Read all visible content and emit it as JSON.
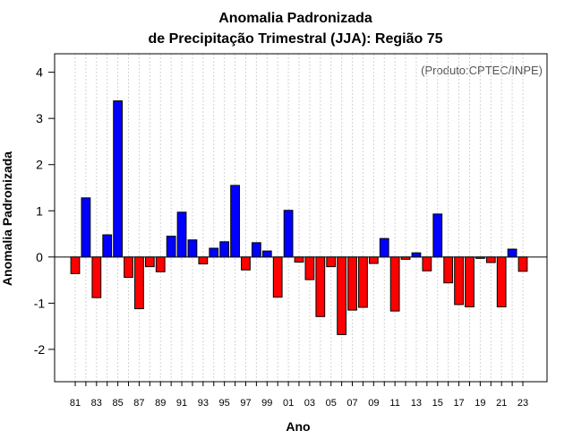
{
  "chart_data": {
    "type": "bar",
    "title_line1": "Anomalia Padronizada",
    "title_line2": "de Precipitação Trimestral (JJA): Região 75",
    "xlabel": "Ano",
    "ylabel": "Anomalia Padronizada",
    "annotation": "(Produto:CPTEC/INPE)",
    "ylim": [
      -2.7,
      4.4
    ],
    "yticks": [
      -2,
      -1,
      0,
      1,
      2,
      3,
      4
    ],
    "years": [
      1981,
      1982,
      1983,
      1984,
      1985,
      1986,
      1987,
      1988,
      1989,
      1990,
      1991,
      1992,
      1993,
      1994,
      1995,
      1996,
      1997,
      1998,
      1999,
      2000,
      2001,
      2002,
      2003,
      2004,
      2005,
      2006,
      2007,
      2008,
      2009,
      2010,
      2011,
      2012,
      2013,
      2014,
      2015,
      2016,
      2017,
      2018,
      2019,
      2020,
      2021,
      2022,
      2023
    ],
    "xtick_labels": [
      "81",
      "83",
      "85",
      "87",
      "89",
      "91",
      "93",
      "95",
      "97",
      "99",
      "01",
      "03",
      "05",
      "07",
      "09",
      "11",
      "13",
      "15",
      "17",
      "19",
      "21",
      "23"
    ],
    "values": [
      -0.36,
      1.28,
      -0.88,
      0.48,
      3.38,
      -0.44,
      -1.12,
      -0.21,
      -0.32,
      0.45,
      0.97,
      0.37,
      -0.15,
      0.19,
      0.33,
      1.55,
      -0.28,
      0.31,
      0.13,
      -0.87,
      1.01,
      -0.11,
      -0.49,
      -1.29,
      -0.21,
      -1.68,
      -1.15,
      -1.09,
      -0.14,
      0.4,
      -1.17,
      -0.05,
      0.09,
      -0.3,
      0.93,
      -0.56,
      -1.03,
      -1.08,
      -0.03,
      -0.12,
      -1.08,
      0.17,
      -0.31
    ],
    "colors": {
      "positive": "#0000ff",
      "negative": "#ff0000",
      "grid": "#d3d3d3"
    }
  }
}
